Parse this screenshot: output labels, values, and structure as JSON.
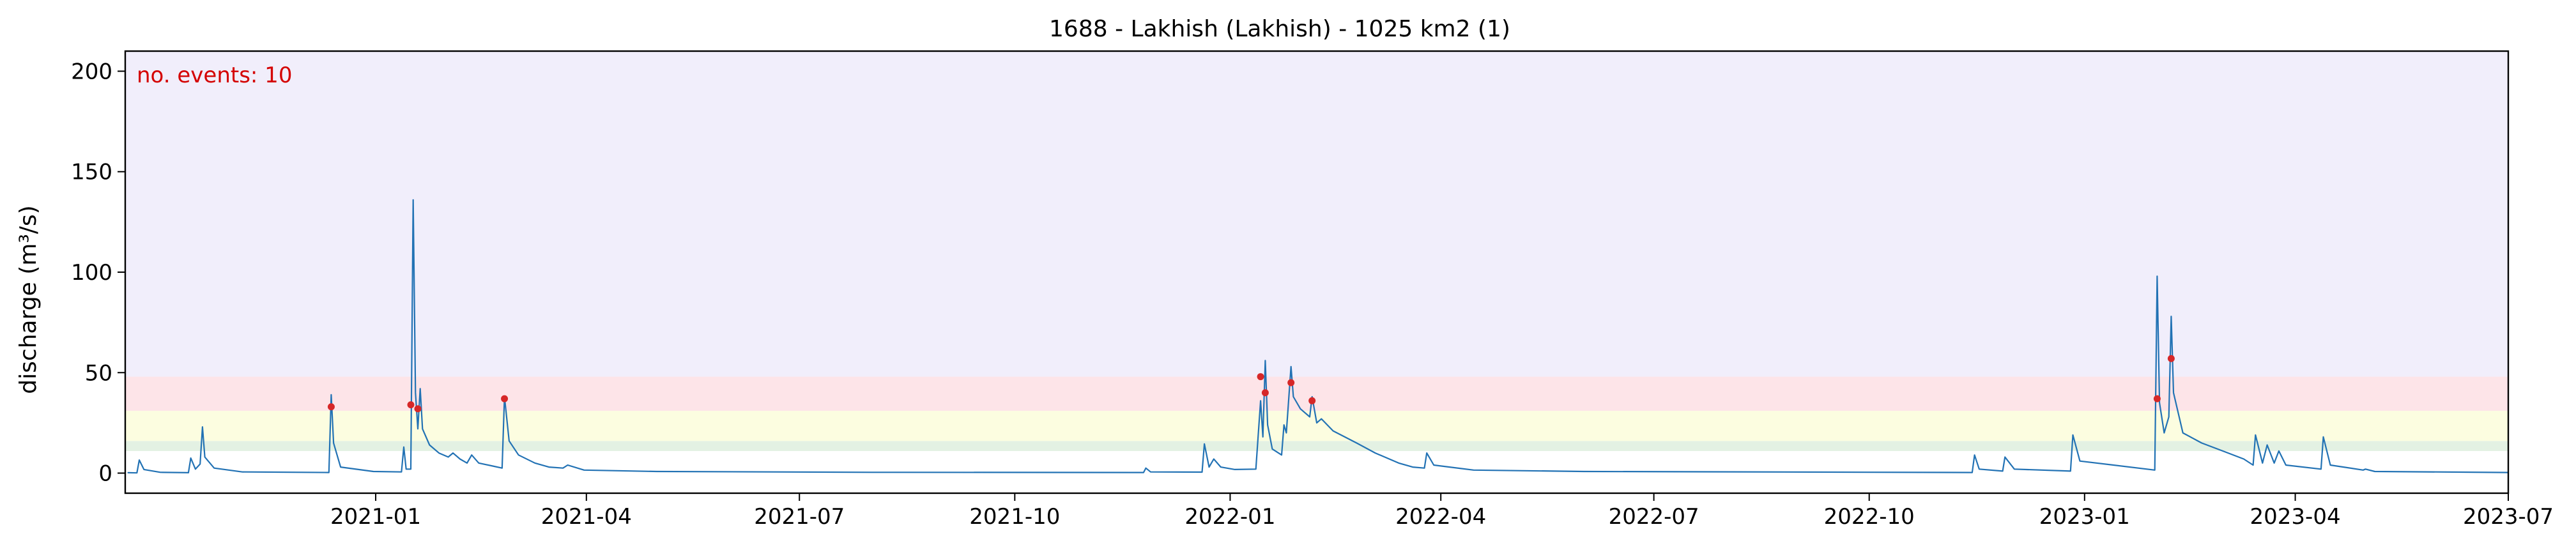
{
  "chart_data": {
    "type": "line",
    "title": "1688 - Lakhish (Lakhish) - 1025 km2 (1)",
    "ylabel": "discharge (m³/s)",
    "xlabel": "",
    "xlim": [
      "2020-09-16",
      "2023-07-01"
    ],
    "ylim": [
      -10,
      210
    ],
    "x_tick_labels": [
      "2021-01",
      "2021-04",
      "2021-07",
      "2021-10",
      "2022-01",
      "2022-04",
      "2022-07",
      "2022-10",
      "2023-01",
      "2023-04",
      "2023-07"
    ],
    "y_tick_labels": [
      "0",
      "50",
      "100",
      "150",
      "200"
    ],
    "annotation": "no. events: 10",
    "background_bands": [
      {
        "from": 11,
        "to": 16,
        "color": "#e3f1e3"
      },
      {
        "from": 16,
        "to": 31,
        "color": "#fcfde0"
      },
      {
        "from": 31,
        "to": 48,
        "color": "#fde4e8"
      },
      {
        "from": 48,
        "to": 210,
        "color": "#f1eefb"
      }
    ],
    "series": [
      {
        "color": "#2272b4",
        "points": [
          [
            "2020-09-17",
            0.2
          ],
          [
            "2020-09-21",
            0.1
          ],
          [
            "2020-09-22",
            6.5
          ],
          [
            "2020-09-24",
            1.8
          ],
          [
            "2020-10-01",
            0.4
          ],
          [
            "2020-10-13",
            0.2
          ],
          [
            "2020-10-14",
            7.5
          ],
          [
            "2020-10-16",
            2.0
          ],
          [
            "2020-10-18",
            4.5
          ],
          [
            "2020-10-19",
            23.0
          ],
          [
            "2020-10-20",
            8.0
          ],
          [
            "2020-10-24",
            2.5
          ],
          [
            "2020-11-05",
            0.6
          ],
          [
            "2020-12-12",
            0.3
          ],
          [
            "2020-12-13",
            39.0
          ],
          [
            "2020-12-14",
            15.0
          ],
          [
            "2020-12-17",
            3.0
          ],
          [
            "2020-12-31",
            0.8
          ],
          [
            "2021-01-12",
            0.6
          ],
          [
            "2021-01-13",
            13.0
          ],
          [
            "2021-01-14",
            2.0
          ],
          [
            "2021-01-16",
            2.0
          ],
          [
            "2021-01-17",
            136.0
          ],
          [
            "2021-01-18",
            40.0
          ],
          [
            "2021-01-19",
            22.0
          ],
          [
            "2021-01-20",
            42.0
          ],
          [
            "2021-01-21",
            22.0
          ],
          [
            "2021-01-24",
            14.0
          ],
          [
            "2021-01-28",
            10.0
          ],
          [
            "2021-02-01",
            8.0
          ],
          [
            "2021-02-03",
            10.0
          ],
          [
            "2021-02-06",
            7.0
          ],
          [
            "2021-02-09",
            5.0
          ],
          [
            "2021-02-11",
            9.0
          ],
          [
            "2021-02-14",
            5.0
          ],
          [
            "2021-02-20",
            3.5
          ],
          [
            "2021-02-24",
            2.5
          ],
          [
            "2021-02-25",
            38.0
          ],
          [
            "2021-02-27",
            16.0
          ],
          [
            "2021-03-03",
            9.0
          ],
          [
            "2021-03-10",
            5.0
          ],
          [
            "2021-03-16",
            3.0
          ],
          [
            "2021-03-22",
            2.5
          ],
          [
            "2021-03-24",
            4.0
          ],
          [
            "2021-03-31",
            1.5
          ],
          [
            "2021-05-01",
            0.8
          ],
          [
            "2021-08-01",
            0.4
          ],
          [
            "2021-11-25",
            0.3
          ],
          [
            "2021-11-26",
            2.5
          ],
          [
            "2021-11-28",
            0.6
          ],
          [
            "2021-12-20",
            0.5
          ],
          [
            "2021-12-21",
            14.5
          ],
          [
            "2021-12-23",
            3.0
          ],
          [
            "2021-12-25",
            7.0
          ],
          [
            "2021-12-28",
            3.0
          ],
          [
            "2022-01-03",
            1.8
          ],
          [
            "2022-01-12",
            2.0
          ],
          [
            "2022-01-14",
            36.0
          ],
          [
            "2022-01-15",
            18.0
          ],
          [
            "2022-01-16",
            56.0
          ],
          [
            "2022-01-17",
            24.0
          ],
          [
            "2022-01-19",
            12.0
          ],
          [
            "2022-01-23",
            9.0
          ],
          [
            "2022-01-24",
            24.0
          ],
          [
            "2022-01-25",
            20.0
          ],
          [
            "2022-01-27",
            53.0
          ],
          [
            "2022-01-28",
            38.0
          ],
          [
            "2022-01-31",
            32.0
          ],
          [
            "2022-02-04",
            28.0
          ],
          [
            "2022-02-05",
            38.0
          ],
          [
            "2022-02-07",
            25.0
          ],
          [
            "2022-02-09",
            27.0
          ],
          [
            "2022-02-14",
            21.0
          ],
          [
            "2022-02-24",
            15.0
          ],
          [
            "2022-03-04",
            10.0
          ],
          [
            "2022-03-14",
            5.0
          ],
          [
            "2022-03-20",
            3.0
          ],
          [
            "2022-03-25",
            2.5
          ],
          [
            "2022-03-26",
            10.0
          ],
          [
            "2022-03-29",
            4.0
          ],
          [
            "2022-04-15",
            1.5
          ],
          [
            "2022-06-01",
            0.8
          ],
          [
            "2022-11-14",
            0.3
          ],
          [
            "2022-11-15",
            9.0
          ],
          [
            "2022-11-17",
            2.0
          ],
          [
            "2022-11-27",
            1.0
          ],
          [
            "2022-11-28",
            8.0
          ],
          [
            "2022-12-02",
            2.0
          ],
          [
            "2022-12-26",
            1.0
          ],
          [
            "2022-12-27",
            19.0
          ],
          [
            "2022-12-30",
            6.0
          ],
          [
            "2023-01-31",
            1.5
          ],
          [
            "2023-02-01",
            98.0
          ],
          [
            "2023-02-02",
            35.0
          ],
          [
            "2023-02-04",
            20.0
          ],
          [
            "2023-02-06",
            28.0
          ],
          [
            "2023-02-07",
            78.0
          ],
          [
            "2023-02-08",
            40.0
          ],
          [
            "2023-02-12",
            20.0
          ],
          [
            "2023-02-20",
            15.0
          ],
          [
            "2023-03-01",
            11.0
          ],
          [
            "2023-03-10",
            7.0
          ],
          [
            "2023-03-14",
            4.0
          ],
          [
            "2023-03-15",
            19.0
          ],
          [
            "2023-03-18",
            5.0
          ],
          [
            "2023-03-20",
            14.0
          ],
          [
            "2023-03-23",
            5.0
          ],
          [
            "2023-03-25",
            11.0
          ],
          [
            "2023-03-28",
            4.0
          ],
          [
            "2023-04-12",
            2.0
          ],
          [
            "2023-04-13",
            18.0
          ],
          [
            "2023-04-16",
            4.0
          ],
          [
            "2023-04-30",
            1.5
          ],
          [
            "2023-05-01",
            2.0
          ],
          [
            "2023-05-05",
            0.8
          ],
          [
            "2023-07-01",
            0.3
          ]
        ]
      }
    ],
    "event_markers": {
      "color": "#d62728",
      "points": [
        [
          "2020-12-13",
          33
        ],
        [
          "2021-01-16",
          34
        ],
        [
          "2021-01-19",
          32
        ],
        [
          "2021-02-25",
          37
        ],
        [
          "2022-01-14",
          48
        ],
        [
          "2022-01-16",
          40
        ],
        [
          "2022-01-27",
          45
        ],
        [
          "2022-02-05",
          36
        ],
        [
          "2023-02-01",
          37
        ],
        [
          "2023-02-07",
          57
        ]
      ]
    }
  }
}
